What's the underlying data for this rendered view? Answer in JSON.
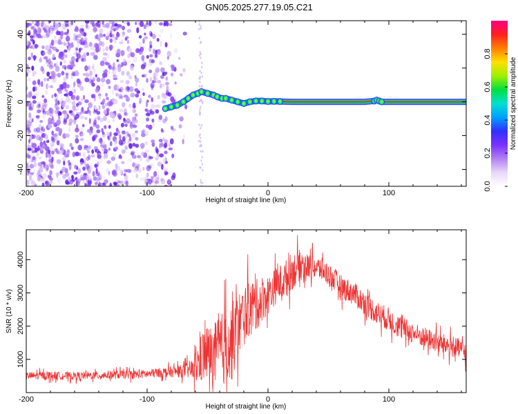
{
  "title": "GN05.2025.277.19.05.C21",
  "chart_data": [
    {
      "type": "heatmap",
      "xlabel": "Height of straight line (km)",
      "ylabel": "Frequency (Hz)",
      "xlim": [
        -200,
        164
      ],
      "ylim": [
        -50,
        48
      ],
      "xticks": [
        -200,
        -100,
        0,
        100
      ],
      "yticks": [
        -40,
        -20,
        0,
        20,
        40
      ],
      "noise_region_x": [
        -200,
        -65
      ],
      "signal_track": {
        "x": [
          -85,
          -80,
          -75,
          -70,
          -66,
          -62,
          -58,
          -55,
          -50,
          -45,
          -42,
          -38,
          -35,
          -30,
          -25,
          -20,
          -15,
          -10,
          -5,
          0,
          5,
          10,
          20,
          40,
          60,
          80,
          88,
          90,
          92,
          94,
          100,
          120,
          140,
          160,
          164
        ],
        "y": [
          -4,
          -3,
          -2,
          0,
          2,
          4,
          5,
          6,
          5,
          4,
          3,
          2,
          2,
          1,
          0,
          -1,
          0,
          0.5,
          0.5,
          0.2,
          0.3,
          0.2,
          0,
          0,
          0,
          0,
          0.5,
          1,
          0.5,
          0,
          0,
          0,
          0,
          0,
          0
        ]
      },
      "colorbar": {
        "label": "Normalized spectral amplitude",
        "range": [
          0,
          1
        ],
        "ticks": [
          0.0,
          0.2,
          0.4,
          0.6,
          0.8
        ],
        "colors": [
          "#ffffff",
          "#e8d8f8",
          "#b080f0",
          "#7a30ff",
          "#3030ff",
          "#00a0ff",
          "#00e0d0",
          "#00e040",
          "#a0f000",
          "#ffe000",
          "#ff8000",
          "#ff2020",
          "#ff0080"
        ]
      }
    },
    {
      "type": "line",
      "xlabel": "Height of straight line (km)",
      "ylabel": "SNR (10 * v/v)",
      "xlim": [
        -200,
        164
      ],
      "ylim": [
        0,
        4900
      ],
      "xticks": [
        -200,
        -100,
        0,
        100
      ],
      "yticks": [
        1000,
        2000,
        3000,
        4000
      ],
      "series": [
        {
          "color": "#ee3333",
          "x": [
            -200,
            -180,
            -160,
            -140,
            -120,
            -100,
            -90,
            -80,
            -70,
            -62,
            -58,
            -54,
            -50,
            -46,
            -42,
            -38,
            -34,
            -30,
            -28,
            -25,
            -22,
            -18,
            -14,
            -10,
            -6,
            -2,
            2,
            6,
            10,
            14,
            18,
            22,
            25,
            28,
            32,
            36,
            40,
            45,
            50,
            55,
            60,
            70,
            80,
            90,
            100,
            110,
            120,
            130,
            140,
            150,
            160,
            164
          ],
          "y": [
            500,
            520,
            500,
            520,
            540,
            560,
            600,
            620,
            650,
            700,
            850,
            1100,
            1200,
            1050,
            1200,
            1300,
            1450,
            1500,
            1700,
            2000,
            2200,
            2400,
            2600,
            2600,
            2800,
            2900,
            3000,
            3200,
            3300,
            3400,
            3600,
            3700,
            3800,
            3850,
            3800,
            3800,
            3750,
            3700,
            3550,
            3400,
            3200,
            3000,
            2700,
            2400,
            2200,
            1950,
            1800,
            1650,
            1500,
            1400,
            1300,
            1200
          ],
          "noise_amplitude": [
            150,
            150,
            150,
            150,
            160,
            170,
            180,
            200,
            250,
            400,
            800,
            1000,
            1100,
            1200,
            1300,
            1400,
            1500,
            1500,
            1400,
            1300,
            1200,
            1100,
            1000,
            1000,
            900,
            800,
            700,
            700,
            700,
            700,
            700,
            700,
            600,
            600,
            500,
            450,
            450,
            450,
            450,
            450,
            450,
            450,
            450,
            450,
            450,
            450,
            400,
            400,
            400,
            400,
            400,
            400
          ]
        }
      ]
    }
  ]
}
